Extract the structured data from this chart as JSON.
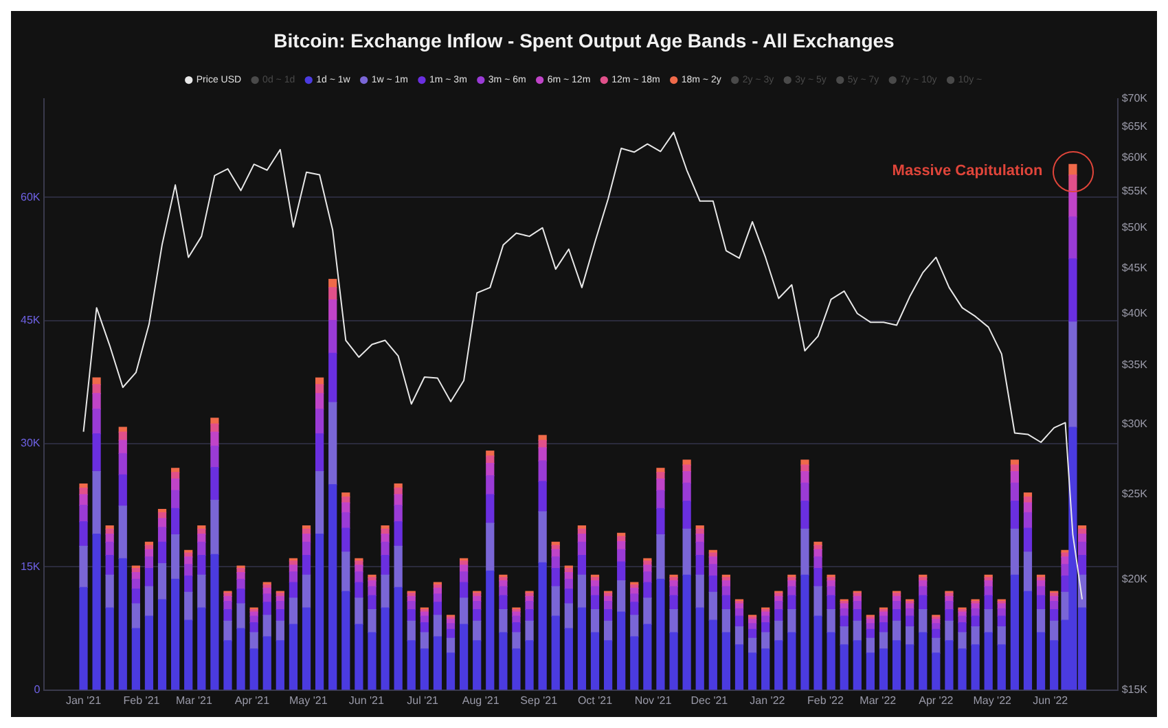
{
  "chart_data": {
    "type": "bar",
    "title": "Bitcoin: Exchange Inflow - Spent Output Age Bands - All Exchanges",
    "stacked": true,
    "legend": "top",
    "grid": "y",
    "log": "y2",
    "marker": "none",
    "x": [
      "2021-01-01",
      "2021-01-08",
      "2021-01-15",
      "2021-01-22",
      "2021-01-29",
      "2021-02-05",
      "2021-02-12",
      "2021-02-19",
      "2021-02-26",
      "2021-03-05",
      "2021-03-12",
      "2021-03-19",
      "2021-03-26",
      "2021-04-02",
      "2021-04-09",
      "2021-04-16",
      "2021-04-23",
      "2021-04-30",
      "2021-05-07",
      "2021-05-14",
      "2021-05-21",
      "2021-05-28",
      "2021-06-04",
      "2021-06-11",
      "2021-06-18",
      "2021-06-25",
      "2021-07-02",
      "2021-07-09",
      "2021-07-16",
      "2021-07-23",
      "2021-07-30",
      "2021-08-06",
      "2021-08-13",
      "2021-08-20",
      "2021-08-27",
      "2021-09-03",
      "2021-09-10",
      "2021-09-17",
      "2021-09-24",
      "2021-10-01",
      "2021-10-08",
      "2021-10-15",
      "2021-10-22",
      "2021-10-29",
      "2021-11-05",
      "2021-11-12",
      "2021-11-19",
      "2021-11-26",
      "2021-12-03",
      "2021-12-10",
      "2021-12-17",
      "2021-12-24",
      "2021-12-31",
      "2022-01-07",
      "2022-01-14",
      "2022-01-21",
      "2022-01-28",
      "2022-02-04",
      "2022-02-11",
      "2022-02-18",
      "2022-02-25",
      "2022-03-04",
      "2022-03-11",
      "2022-03-18",
      "2022-03-25",
      "2022-04-01",
      "2022-04-08",
      "2022-04-15",
      "2022-04-22",
      "2022-04-29",
      "2022-05-06",
      "2022-05-13",
      "2022-05-20",
      "2022-05-27",
      "2022-06-03",
      "2022-06-09",
      "2022-06-13",
      "2022-06-18"
    ],
    "xlim": [
      "2020-12-27",
      "2022-06-21"
    ],
    "xticks": [
      {
        "value": "2021-01-01",
        "label": "Jan '21"
      },
      {
        "value": "2021-02-01",
        "label": "Feb '21"
      },
      {
        "value": "2021-03-01",
        "label": "Mar '21"
      },
      {
        "value": "2021-04-01",
        "label": "Apr '21"
      },
      {
        "value": "2021-05-01",
        "label": "May '21"
      },
      {
        "value": "2021-06-01",
        "label": "Jun '21"
      },
      {
        "value": "2021-07-01",
        "label": "Jul '21"
      },
      {
        "value": "2021-08-01",
        "label": "Aug '21"
      },
      {
        "value": "2021-09-01",
        "label": "Sep '21"
      },
      {
        "value": "2021-10-01",
        "label": "Oct '21"
      },
      {
        "value": "2021-11-01",
        "label": "Nov '21"
      },
      {
        "value": "2021-12-01",
        "label": "Dec '21"
      },
      {
        "value": "2022-01-01",
        "label": "Jan '22"
      },
      {
        "value": "2022-02-01",
        "label": "Feb '22"
      },
      {
        "value": "2022-03-01",
        "label": "Mar '22"
      },
      {
        "value": "2022-04-01",
        "label": "Apr '22"
      },
      {
        "value": "2022-05-01",
        "label": "May '22"
      },
      {
        "value": "2022-06-01",
        "label": "Jun '22"
      }
    ],
    "ylim": [
      0,
      72000
    ],
    "yticks": [
      0,
      {
        "value": 15000,
        "label": "15K"
      },
      {
        "value": 30000,
        "label": "30K"
      },
      {
        "value": 45000,
        "label": "45K"
      },
      {
        "value": 60000,
        "label": "60K"
      }
    ],
    "y2lim": [
      15000,
      70000
    ],
    "y2ticks": [
      {
        "value": 15000,
        "label": "$15K"
      },
      {
        "value": 20000,
        "label": "$20K"
      },
      {
        "value": 25000,
        "label": "$25K"
      },
      {
        "value": 30000,
        "label": "$30K"
      },
      {
        "value": 35000,
        "label": "$35K"
      },
      {
        "value": 40000,
        "label": "$40K"
      },
      {
        "value": 45000,
        "label": "$45K"
      },
      {
        "value": 50000,
        "label": "$50K"
      },
      {
        "value": 55000,
        "label": "$55K"
      },
      {
        "value": 60000,
        "label": "$60K"
      },
      {
        "value": 65000,
        "label": "$65K"
      },
      {
        "value": 70000,
        "label": "$70K"
      }
    ],
    "series": [
      {
        "name": "Price USD",
        "type": "line",
        "axis": "y2",
        "color": "#e8e8e8",
        "values": [
          29400,
          40600,
          36800,
          33000,
          34300,
          38900,
          47900,
          55900,
          46300,
          48900,
          57300,
          58300,
          55100,
          59000,
          58100,
          61300,
          50100,
          57800,
          57400,
          49700,
          37300,
          35700,
          36900,
          37300,
          35800,
          31600,
          33900,
          33800,
          31800,
          33600,
          42200,
          42800,
          47800,
          49300,
          48900,
          50000,
          44900,
          47300,
          42800,
          48200,
          53900,
          61500,
          60900,
          62200,
          61000,
          64100,
          58100,
          53600,
          53600,
          47100,
          46200,
          50800,
          46300,
          41600,
          43100,
          36300,
          37700,
          41500,
          42400,
          40000,
          39100,
          39100,
          38800,
          41800,
          44500,
          46300,
          42800,
          40600,
          39700,
          38600,
          36000,
          29300,
          29200,
          28600,
          29700,
          30100,
          22500,
          19000
        ]
      },
      {
        "name": "0d ~ 1d",
        "color": "#4a4a4a",
        "values": [
          null,
          null,
          null,
          null,
          null,
          null,
          null,
          null,
          null,
          null,
          null,
          null,
          null,
          null,
          null,
          null,
          null,
          null,
          null,
          null,
          null,
          null,
          null,
          null,
          null,
          null,
          null,
          null,
          null,
          null,
          null,
          null,
          null,
          null,
          null,
          null,
          null,
          null,
          null,
          null,
          null,
          null,
          null,
          null,
          null,
          null,
          null,
          null,
          null,
          null,
          null,
          null,
          null,
          null,
          null,
          null,
          null,
          null,
          null,
          null,
          null,
          null,
          null,
          null,
          null,
          null,
          null,
          null,
          null,
          null,
          null,
          null,
          null,
          null,
          null,
          null,
          null,
          null
        ]
      },
      {
        "name": "1d ~ 1w",
        "color": "#4b3be0",
        "values": [
          12500,
          19000,
          10000,
          16000,
          7500,
          9000,
          11000,
          13500,
          8500,
          10000,
          16500,
          6000,
          7500,
          5000,
          6500,
          6000,
          8000,
          10000,
          19000,
          25000,
          12000,
          8000,
          7000,
          10000,
          12500,
          6000,
          5000,
          6500,
          4500,
          8000,
          6000,
          14500,
          7000,
          5000,
          6000,
          15500,
          9000,
          7500,
          10000,
          7000,
          6000,
          9500,
          6500,
          8000,
          13500,
          7000,
          14000,
          10000,
          8500,
          7000,
          5500,
          4500,
          5000,
          6000,
          7000,
          14000,
          9000,
          7000,
          5500,
          6000,
          4500,
          5000,
          6000,
          5500,
          7000,
          4500,
          6000,
          5000,
          5500,
          7000,
          5500,
          14000,
          12000,
          7000,
          6000,
          8500,
          32000,
          10000
        ]
      },
      {
        "name": "1w ~ 1m",
        "color": "#7a66d6",
        "values": [
          5000,
          7600,
          4000,
          6400,
          3000,
          3600,
          4400,
          5400,
          3400,
          4000,
          6600,
          2400,
          3000,
          2000,
          2600,
          2400,
          3200,
          4000,
          7600,
          10000,
          4800,
          3200,
          2800,
          4000,
          5000,
          2400,
          2000,
          2600,
          1800,
          3200,
          2400,
          5800,
          2800,
          2000,
          2400,
          6200,
          3600,
          3000,
          4000,
          2800,
          2400,
          3800,
          2600,
          3200,
          5400,
          2800,
          5600,
          4000,
          3400,
          2800,
          2200,
          1800,
          2000,
          2400,
          2800,
          5600,
          3600,
          2800,
          2200,
          2400,
          1800,
          2000,
          2400,
          2200,
          2800,
          1800,
          2400,
          2000,
          2200,
          2800,
          2200,
          5600,
          4800,
          2800,
          2400,
          3400,
          12800,
          4000
        ]
      },
      {
        "name": "1m ~ 3m",
        "color": "#6a2fe0",
        "values": [
          3000,
          4600,
          2400,
          3800,
          1800,
          2200,
          2600,
          3200,
          2000,
          2400,
          4000,
          1400,
          1800,
          1200,
          1600,
          1400,
          1900,
          2400,
          4600,
          6000,
          2900,
          1900,
          1700,
          2400,
          3000,
          1400,
          1200,
          1600,
          1100,
          1900,
          1400,
          3500,
          1700,
          1200,
          1400,
          3700,
          2200,
          1800,
          2400,
          1700,
          1400,
          2300,
          1600,
          1900,
          3200,
          1700,
          3400,
          2400,
          2000,
          1700,
          1300,
          1100,
          1200,
          1400,
          1700,
          3400,
          2200,
          1700,
          1300,
          1400,
          1100,
          1200,
          1400,
          1300,
          1700,
          1100,
          1400,
          1200,
          1300,
          1700,
          1300,
          3400,
          2900,
          1700,
          1400,
          2000,
          7700,
          2400
        ]
      },
      {
        "name": "3m ~ 6m",
        "color": "#9a3bd6",
        "values": [
          2000,
          3000,
          1600,
          2600,
          1200,
          1400,
          1800,
          2200,
          1400,
          1600,
          2600,
          1000,
          1200,
          800,
          1000,
          1000,
          1300,
          1600,
          3000,
          4000,
          1900,
          1300,
          1100,
          1600,
          2000,
          1000,
          800,
          1000,
          700,
          1300,
          1000,
          2300,
          1100,
          800,
          1000,
          2500,
          1400,
          1200,
          1600,
          1100,
          1000,
          1500,
          1000,
          1300,
          2200,
          1100,
          2200,
          1600,
          1400,
          1100,
          900,
          700,
          800,
          1000,
          1100,
          2200,
          1400,
          1100,
          900,
          1000,
          700,
          800,
          1000,
          900,
          1100,
          700,
          1000,
          800,
          900,
          1100,
          900,
          2200,
          1900,
          1100,
          1000,
          1400,
          5100,
          1600
        ]
      },
      {
        "name": "6m ~ 12m",
        "color": "#c044c8",
        "values": [
          1300,
          1900,
          1000,
          1600,
          800,
          900,
          1100,
          1400,
          900,
          1000,
          1700,
          600,
          800,
          500,
          700,
          600,
          800,
          1000,
          1900,
          2500,
          1200,
          800,
          700,
          1000,
          1300,
          600,
          500,
          700,
          500,
          800,
          600,
          1500,
          700,
          500,
          600,
          1600,
          900,
          800,
          1000,
          700,
          600,
          1000,
          700,
          800,
          1400,
          700,
          1400,
          1000,
          900,
          700,
          600,
          500,
          500,
          600,
          700,
          1400,
          900,
          700,
          600,
          600,
          500,
          500,
          600,
          600,
          700,
          500,
          600,
          500,
          600,
          700,
          600,
          1400,
          1200,
          700,
          600,
          900,
          3200,
          1000
        ]
      },
      {
        "name": "12m ~ 18m",
        "color": "#e0508a",
        "values": [
          800,
          1100,
          600,
          1000,
          500,
          500,
          700,
          800,
          500,
          600,
          1000,
          400,
          500,
          300,
          400,
          400,
          500,
          600,
          1100,
          1500,
          700,
          500,
          400,
          600,
          800,
          400,
          300,
          400,
          300,
          500,
          400,
          900,
          400,
          300,
          400,
          900,
          500,
          500,
          600,
          400,
          400,
          600,
          400,
          500,
          800,
          400,
          800,
          600,
          500,
          400,
          300,
          300,
          300,
          400,
          400,
          800,
          500,
          400,
          300,
          400,
          300,
          300,
          400,
          300,
          400,
          300,
          400,
          300,
          300,
          400,
          300,
          800,
          700,
          400,
          400,
          500,
          1900,
          600
        ]
      },
      {
        "name": "18m ~ 2y",
        "color": "#f06a4a",
        "values": [
          500,
          800,
          400,
          600,
          300,
          400,
          400,
          500,
          300,
          400,
          700,
          200,
          300,
          200,
          300,
          200,
          300,
          400,
          800,
          1000,
          500,
          300,
          300,
          400,
          500,
          200,
          200,
          300,
          200,
          300,
          200,
          600,
          300,
          200,
          200,
          600,
          400,
          300,
          400,
          300,
          200,
          400,
          300,
          300,
          500,
          300,
          600,
          400,
          300,
          300,
          200,
          200,
          200,
          200,
          300,
          600,
          400,
          300,
          200,
          200,
          200,
          200,
          200,
          200,
          300,
          200,
          200,
          200,
          200,
          300,
          200,
          600,
          500,
          300,
          200,
          300,
          1300,
          400
        ]
      },
      {
        "name": "2y ~ 3y",
        "color": "#4a4a4a",
        "values": [
          null,
          null,
          null,
          null,
          null,
          null,
          null,
          null,
          null,
          null,
          null,
          null,
          null,
          null,
          null,
          null,
          null,
          null,
          null,
          null,
          null,
          null,
          null,
          null,
          null,
          null,
          null,
          null,
          null,
          null,
          null,
          null,
          null,
          null,
          null,
          null,
          null,
          null,
          null,
          null,
          null,
          null,
          null,
          null,
          null,
          null,
          null,
          null,
          null,
          null,
          null,
          null,
          null,
          null,
          null,
          null,
          null,
          null,
          null,
          null,
          null,
          null,
          null,
          null,
          null,
          null,
          null,
          null,
          null,
          null,
          null,
          null,
          null,
          null,
          null,
          null,
          null,
          null
        ]
      },
      {
        "name": "3y ~ 5y",
        "color": "#4a4a4a",
        "values": [
          null,
          null,
          null,
          null,
          null,
          null,
          null,
          null,
          null,
          null,
          null,
          null,
          null,
          null,
          null,
          null,
          null,
          null,
          null,
          null,
          null,
          null,
          null,
          null,
          null,
          null,
          null,
          null,
          null,
          null,
          null,
          null,
          null,
          null,
          null,
          null,
          null,
          null,
          null,
          null,
          null,
          null,
          null,
          null,
          null,
          null,
          null,
          null,
          null,
          null,
          null,
          null,
          null,
          null,
          null,
          null,
          null,
          null,
          null,
          null,
          null,
          null,
          null,
          null,
          null,
          null,
          null,
          null,
          null,
          null,
          null,
          null,
          null,
          null,
          null,
          null,
          null,
          null
        ]
      },
      {
        "name": "5y ~ 7y",
        "color": "#4a4a4a",
        "values": [
          null,
          null,
          null,
          null,
          null,
          null,
          null,
          null,
          null,
          null,
          null,
          null,
          null,
          null,
          null,
          null,
          null,
          null,
          null,
          null,
          null,
          null,
          null,
          null,
          null,
          null,
          null,
          null,
          null,
          null,
          null,
          null,
          null,
          null,
          null,
          null,
          null,
          null,
          null,
          null,
          null,
          null,
          null,
          null,
          null,
          null,
          null,
          null,
          null,
          null,
          null,
          null,
          null,
          null,
          null,
          null,
          null,
          null,
          null,
          null,
          null,
          null,
          null,
          null,
          null,
          null,
          null,
          null,
          null,
          null,
          null,
          null,
          null,
          null,
          null,
          null,
          null,
          null
        ]
      },
      {
        "name": "7y ~ 10y",
        "color": "#4a4a4a",
        "values": [
          null,
          null,
          null,
          null,
          null,
          null,
          null,
          null,
          null,
          null,
          null,
          null,
          null,
          null,
          null,
          null,
          null,
          null,
          null,
          null,
          null,
          null,
          null,
          null,
          null,
          null,
          null,
          null,
          null,
          null,
          null,
          null,
          null,
          null,
          null,
          null,
          null,
          null,
          null,
          null,
          null,
          null,
          null,
          null,
          null,
          null,
          null,
          null,
          null,
          null,
          null,
          null,
          null,
          null,
          null,
          null,
          null,
          null,
          null,
          null,
          null,
          null,
          null,
          null,
          null,
          null,
          null,
          null,
          null,
          null,
          null,
          null,
          null,
          null,
          null,
          null,
          null,
          null
        ]
      },
      {
        "name": "10y ~",
        "color": "#4a4a4a",
        "values": [
          null,
          null,
          null,
          null,
          null,
          null,
          null,
          null,
          null,
          null,
          null,
          null,
          null,
          null,
          null,
          null,
          null,
          null,
          null,
          null,
          null,
          null,
          null,
          null,
          null,
          null,
          null,
          null,
          null,
          null,
          null,
          null,
          null,
          null,
          null,
          null,
          null,
          null,
          null,
          null,
          null,
          null,
          null,
          null,
          null,
          null,
          null,
          null,
          null,
          null,
          null,
          null,
          null,
          null,
          null,
          null,
          null,
          null,
          null,
          null,
          null,
          null,
          null,
          null,
          null,
          null,
          null,
          null,
          null,
          null,
          null,
          null,
          null,
          null,
          null,
          null,
          null,
          null
        ]
      }
    ],
    "annotations": [
      {
        "text": "Massive Capitulation",
        "x": "2022-06-13",
        "y": 64000
      }
    ]
  }
}
